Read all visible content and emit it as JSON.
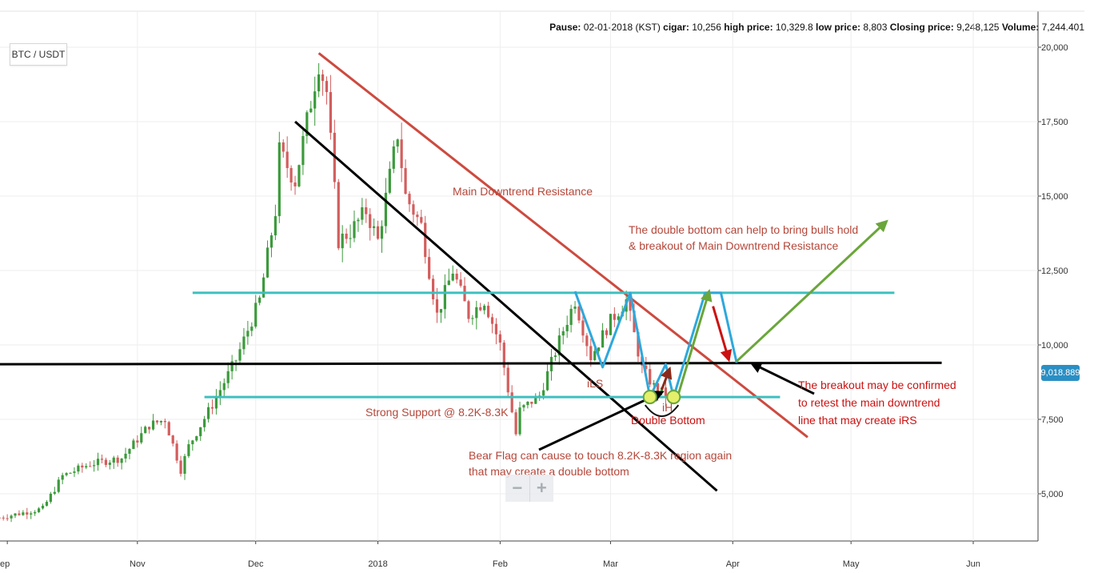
{
  "header": {
    "info_bar": [
      {
        "label": "Pause:",
        "value": "02-01-2018 (KST)"
      },
      {
        "label": "cigar:",
        "value": "10,256"
      },
      {
        "label": "high price:",
        "value": "10,329.8"
      },
      {
        "label": "low price:",
        "value": "8,803"
      },
      {
        "label": "Closing price:",
        "value": "9,248,125"
      },
      {
        "label": "Volume:",
        "value": "7,244.401"
      }
    ],
    "symbol": "BTC / USDT"
  },
  "price_badge": "9,018.889",
  "zoom": {
    "minus": "−",
    "plus": "+"
  },
  "colors": {
    "up": "#3c9a3c",
    "down": "#d35d5d",
    "resistance": "#cd4a3f",
    "black_trend": "#000000",
    "cyan": "#3fbfbf",
    "pattern": "#2ea8dc",
    "green_arrow": "#6aa63a",
    "red_arrow": "#cc1111",
    "annotation_brown": "#b5473a",
    "annotation_red": "#cc1111",
    "badge": "#2a8fc4"
  },
  "chart_data": {
    "type": "candlestick",
    "y_ticks": [
      "20,000",
      "17,500",
      "15,000",
      "12,500",
      "10,000",
      "7,500",
      "5,000"
    ],
    "y_tick_values": [
      20000,
      17500,
      15000,
      12500,
      10000,
      7500,
      5000
    ],
    "x_ticks": [
      "ep",
      "Nov",
      "Dec",
      "2018",
      "Feb",
      "Mar",
      "Apr",
      "May",
      "Jun"
    ],
    "ylim": [
      3500,
      20200
    ],
    "current_price": 9018.889,
    "price_path": [
      [
        "2017-09-27",
        4200
      ],
      [
        "2017-10-08",
        4500
      ],
      [
        "2017-10-13",
        5600
      ],
      [
        "2017-10-20",
        6000
      ],
      [
        "2017-10-28",
        6200
      ],
      [
        "2017-11-04",
        7300
      ],
      [
        "2017-11-08",
        7500
      ],
      [
        "2017-11-12",
        5800
      ],
      [
        "2017-11-14",
        6600
      ],
      [
        "2017-11-20",
        8000
      ],
      [
        "2017-11-26",
        9500
      ],
      [
        "2017-11-29",
        10500
      ],
      [
        "2017-12-02",
        11500
      ],
      [
        "2017-12-06",
        14500
      ],
      [
        "2017-12-07",
        16500
      ],
      [
        "2017-12-11",
        15500
      ],
      [
        "2017-12-14",
        17500
      ],
      [
        "2017-12-17",
        19500
      ],
      [
        "2017-12-19",
        18500
      ],
      [
        "2017-12-22",
        13500
      ],
      [
        "2017-12-25",
        13800
      ],
      [
        "2017-12-29",
        14500
      ],
      [
        "2018-01-01",
        13500
      ],
      [
        "2018-01-06",
        17100
      ],
      [
        "2018-01-08",
        15000
      ],
      [
        "2018-01-12",
        14000
      ],
      [
        "2018-01-16",
        11000
      ],
      [
        "2018-01-20",
        12500
      ],
      [
        "2018-01-24",
        11000
      ],
      [
        "2018-01-28",
        11500
      ],
      [
        "2018-02-01",
        10000
      ],
      [
        "2018-02-05",
        7000
      ],
      [
        "2018-02-06",
        7800
      ],
      [
        "2018-02-11",
        8300
      ],
      [
        "2018-02-17",
        10500
      ],
      [
        "2018-02-20",
        11500
      ],
      [
        "2018-02-24",
        9600
      ],
      [
        "2018-03-01",
        10800
      ],
      [
        "2018-03-05",
        11500
      ],
      [
        "2018-03-09",
        9200
      ],
      [
        "2018-03-12",
        8600
      ],
      [
        "2018-03-15",
        8300
      ],
      [
        "2018-03-17",
        8200
      ]
    ],
    "lines": [
      {
        "name": "main-downtrend-resistance",
        "from": [
          "2017-12-17",
          19800
        ],
        "to": [
          "2018-04-20",
          6900
        ]
      },
      {
        "name": "black-downtrend",
        "from": [
          "2017-12-11",
          17500
        ],
        "to": [
          "2018-03-28",
          5100
        ]
      },
      {
        "name": "black-horizontal",
        "from": [
          "2017-09-26",
          9350
        ],
        "to": [
          "2018-05-24",
          9400
        ]
      },
      {
        "name": "upper-cyan-resistance",
        "from": [
          "2017-11-15",
          11750
        ],
        "to": [
          "2018-05-12",
          11750
        ]
      },
      {
        "name": "lower-cyan-support",
        "from": [
          "2017-11-18",
          8250
        ],
        "to": [
          "2018-04-13",
          8250
        ]
      }
    ],
    "annotations": {
      "resistance_label": "Main Downtrend Resistance",
      "double_bottom_note_1": "The double bottom can help to bring bulls hold",
      "double_bottom_note_2": "& breakout of Main Downtrend Resistance",
      "support_label": "Strong Support @ 8.2K-8.3K",
      "bear_flag_1": "Bear Flag can cause to touch 8.2K-8.3K region again",
      "bear_flag_2": "that may create a double bottom",
      "ils": "iLS",
      "ih": "iH",
      "double_bottom": "Double Bottom",
      "breakout_1": "The breakout may be confirmed",
      "breakout_2": "to retest the main downtrend",
      "breakout_3": "line that may create iRS"
    }
  }
}
